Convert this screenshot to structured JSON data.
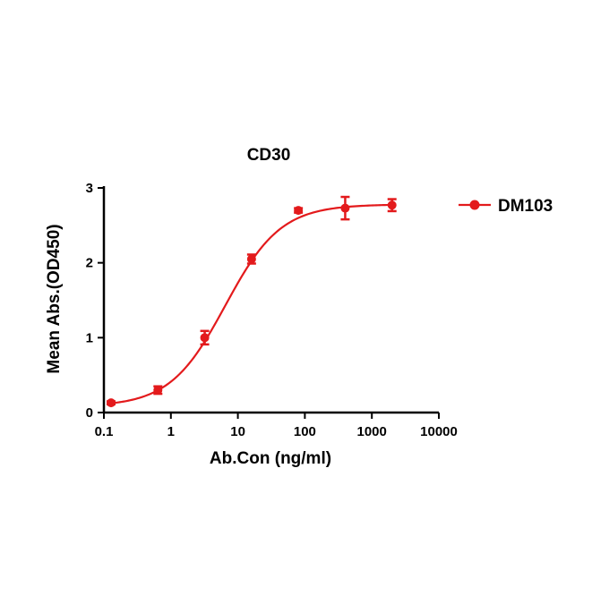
{
  "chart_data": {
    "type": "scatter",
    "title": "CD30",
    "xlabel": "Ab.Con (ng/ml)",
    "ylabel": "Mean Abs.(OD450)",
    "x_scale": "log",
    "xlim": [
      0.1,
      10000
    ],
    "ylim": [
      0,
      3
    ],
    "x_ticks": [
      0.1,
      1,
      10,
      100,
      1000,
      10000
    ],
    "x_tick_labels": [
      "0.1",
      "1",
      "10",
      "100",
      "1000",
      "10000"
    ],
    "y_ticks": [
      0,
      1,
      2,
      3
    ],
    "y_tick_labels": [
      "0",
      "1",
      "2",
      "3"
    ],
    "grid": false,
    "legend_position": "right",
    "series": [
      {
        "name": "DM103",
        "color": "#e31a1c",
        "marker": "circle",
        "x": [
          0.128,
          0.64,
          3.2,
          16,
          80,
          400,
          2000
        ],
        "y": [
          0.13,
          0.3,
          1.0,
          2.05,
          2.7,
          2.73,
          2.77
        ],
        "error": [
          0.02,
          0.05,
          0.09,
          0.06,
          0.03,
          0.15,
          0.08
        ],
        "fit": {
          "type": "four-parameter logistic",
          "bottom": 0.08,
          "top": 2.78,
          "ec50": 6.5,
          "hill": 1.05
        }
      }
    ]
  }
}
